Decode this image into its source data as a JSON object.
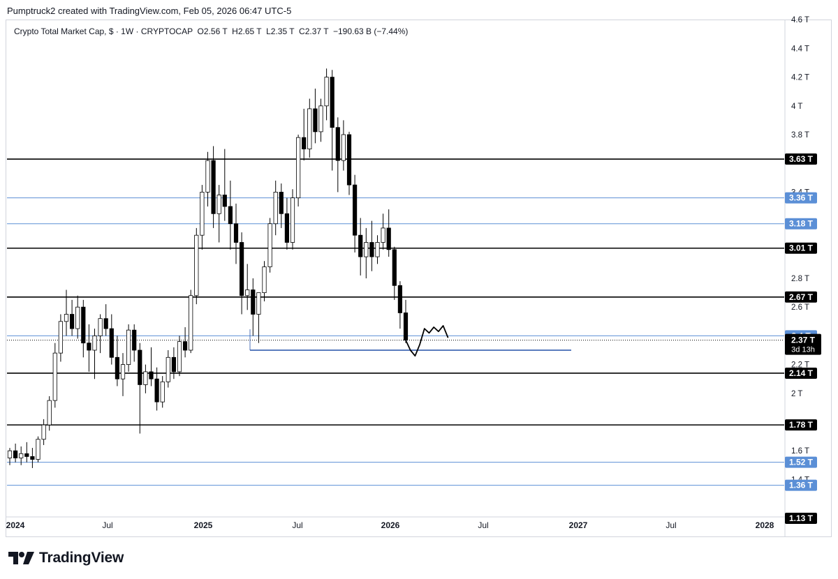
{
  "header": {
    "credit": "Pumptruck2 created with TradingView.com, Feb 05, 2026 06:47 UTC-5"
  },
  "legend": {
    "symbol": "Crypto Total Market Cap, $ · 1W · CRYPTOCAP",
    "o_key": "O",
    "o_val": "2.56 T",
    "h_key": "H",
    "h_val": "2.65 T",
    "l_key": "L",
    "l_val": "2.35 T",
    "c_key": "C",
    "c_val": "2.37 T",
    "change": "−190.63 B (−7.44%)"
  },
  "brand": {
    "name": "TradingView"
  },
  "colors": {
    "black_line": "#000000",
    "blue_line": "#5b8fd6",
    "support_line": "#2450a8",
    "candle_up_fill": "#ffffff",
    "candle_down_fill": "#000000",
    "badge_black": "#000000",
    "badge_blue": "#5b8fd6"
  },
  "chart_data": {
    "type": "candlestick",
    "title": "Crypto Total Market Cap, $ · 1W · CRYPTOCAP",
    "timeframe": "1W",
    "unit": "T",
    "y_ticks": [
      "4.6 T",
      "4.4 T",
      "4.2 T",
      "4 T",
      "3.8 T",
      "3.4 T",
      "2.8 T",
      "2.6 T",
      "2.2 T",
      "2 T",
      "1.6 T",
      "1.4 T"
    ],
    "y_tick_values": [
      4.6,
      4.4,
      4.2,
      4.0,
      3.8,
      3.4,
      2.8,
      2.6,
      2.2,
      2.0,
      1.6,
      1.4
    ],
    "x_labels": [
      {
        "label": "2024",
        "bold": true
      },
      {
        "label": "Jul",
        "bold": false
      },
      {
        "label": "2025",
        "bold": true
      },
      {
        "label": "Jul",
        "bold": false
      },
      {
        "label": "2026",
        "bold": true
      },
      {
        "label": "Jul",
        "bold": false
      },
      {
        "label": "2027",
        "bold": true
      },
      {
        "label": "Jul",
        "bold": false
      },
      {
        "label": "2028",
        "bold": true
      }
    ],
    "horizontal_levels": [
      {
        "value": 3.63,
        "label": "3.63 T",
        "style": "black"
      },
      {
        "value": 3.36,
        "label": "3.36 T",
        "style": "blue"
      },
      {
        "value": 3.18,
        "label": "3.18 T",
        "style": "blue"
      },
      {
        "value": 3.01,
        "label": "3.01 T",
        "style": "black"
      },
      {
        "value": 2.67,
        "label": "2.67 T",
        "style": "black"
      },
      {
        "value": 2.4,
        "label": "2.4 T",
        "style": "blue"
      },
      {
        "value": 2.14,
        "label": "2.14 T",
        "style": "black"
      },
      {
        "value": 1.78,
        "label": "1.78 T",
        "style": "black"
      },
      {
        "value": 1.52,
        "label": "1.52 T",
        "style": "blue"
      },
      {
        "value": 1.36,
        "label": "1.36 T",
        "style": "blue"
      },
      {
        "value": 1.13,
        "label": "1.13 T",
        "style": "black-badge-only"
      }
    ],
    "last_price": {
      "value": 2.37,
      "label": "2.37 T",
      "countdown": "3d 13h"
    },
    "support_segment": {
      "value": 2.3
    },
    "series": [
      {
        "candles": [
          [
            1.55,
            1.62,
            1.5,
            1.6
          ],
          [
            1.6,
            1.65,
            1.52,
            1.55
          ],
          [
            1.55,
            1.63,
            1.5,
            1.58
          ],
          [
            1.58,
            1.66,
            1.52,
            1.56
          ],
          [
            1.56,
            1.62,
            1.48,
            1.54
          ],
          [
            1.54,
            1.7,
            1.52,
            1.68
          ],
          [
            1.68,
            1.82,
            1.64,
            1.78
          ],
          [
            1.78,
            1.98,
            1.74,
            1.95
          ],
          [
            1.95,
            2.35,
            1.9,
            2.28
          ],
          [
            2.28,
            2.55,
            2.22,
            2.5
          ],
          [
            2.5,
            2.72,
            2.4,
            2.55
          ],
          [
            2.55,
            2.65,
            2.4,
            2.45
          ],
          [
            2.45,
            2.68,
            2.38,
            2.6
          ],
          [
            2.6,
            2.65,
            2.25,
            2.35
          ],
          [
            2.35,
            2.48,
            2.15,
            2.3
          ],
          [
            2.3,
            2.45,
            2.1,
            2.4
          ],
          [
            2.4,
            2.55,
            2.28,
            2.52
          ],
          [
            2.52,
            2.62,
            2.4,
            2.45
          ],
          [
            2.45,
            2.55,
            2.2,
            2.25
          ],
          [
            2.25,
            2.4,
            2.05,
            2.1
          ],
          [
            2.1,
            2.28,
            1.98,
            2.2
          ],
          [
            2.2,
            2.48,
            2.15,
            2.44
          ],
          [
            2.44,
            2.48,
            2.22,
            2.3
          ],
          [
            2.3,
            2.35,
            1.72,
            2.06
          ],
          [
            2.06,
            2.2,
            2.0,
            2.15
          ],
          [
            2.15,
            2.32,
            2.05,
            2.1
          ],
          [
            2.1,
            2.18,
            1.88,
            1.94
          ],
          [
            1.94,
            2.12,
            1.9,
            2.08
          ],
          [
            2.08,
            2.3,
            2.04,
            2.25
          ],
          [
            2.25,
            2.32,
            2.1,
            2.15
          ],
          [
            2.15,
            2.4,
            2.12,
            2.36
          ],
          [
            2.36,
            2.46,
            2.25,
            2.3
          ],
          [
            2.3,
            2.72,
            2.28,
            2.68
          ],
          [
            2.68,
            3.15,
            2.62,
            3.1
          ],
          [
            3.1,
            3.45,
            3.0,
            3.4
          ],
          [
            3.4,
            3.68,
            3.3,
            3.62
          ],
          [
            3.62,
            3.72,
            3.15,
            3.25
          ],
          [
            3.25,
            3.45,
            3.05,
            3.38
          ],
          [
            3.38,
            3.7,
            3.2,
            3.3
          ],
          [
            3.3,
            3.48,
            3.0,
            3.18
          ],
          [
            3.18,
            3.32,
            2.9,
            3.05
          ],
          [
            3.05,
            3.12,
            2.55,
            2.68
          ],
          [
            2.68,
            2.9,
            2.58,
            2.72
          ],
          [
            2.72,
            2.8,
            2.4,
            2.55
          ],
          [
            2.55,
            2.68,
            2.35,
            2.7
          ],
          [
            2.7,
            2.92,
            2.64,
            2.88
          ],
          [
            2.88,
            3.22,
            2.84,
            3.18
          ],
          [
            3.18,
            3.48,
            3.1,
            3.4
          ],
          [
            3.4,
            3.46,
            3.15,
            3.25
          ],
          [
            3.25,
            3.36,
            3.0,
            3.05
          ],
          [
            3.05,
            3.42,
            3.0,
            3.36
          ],
          [
            3.36,
            3.8,
            3.3,
            3.78
          ],
          [
            3.78,
            3.98,
            3.62,
            3.7
          ],
          [
            3.7,
            4.05,
            3.64,
            3.98
          ],
          [
            3.98,
            4.12,
            3.74,
            3.82
          ],
          [
            3.82,
            4.05,
            3.75,
            4.0
          ],
          [
            4.0,
            4.26,
            3.9,
            4.2
          ],
          [
            4.2,
            4.25,
            3.55,
            3.85
          ],
          [
            3.85,
            3.92,
            3.4,
            3.62
          ],
          [
            3.62,
            3.9,
            3.55,
            3.8
          ],
          [
            3.8,
            3.82,
            3.38,
            3.45
          ],
          [
            3.45,
            3.52,
            2.98,
            3.1
          ],
          [
            3.1,
            3.22,
            2.82,
            2.95
          ],
          [
            2.95,
            3.15,
            2.8,
            3.05
          ],
          [
            3.05,
            3.2,
            2.85,
            2.95
          ],
          [
            2.95,
            3.1,
            2.9,
            3.05
          ],
          [
            3.05,
            3.25,
            3.0,
            3.15
          ],
          [
            3.15,
            3.28,
            2.95,
            3.0
          ],
          [
            3.0,
            3.02,
            2.65,
            2.75
          ],
          [
            2.75,
            2.78,
            2.45,
            2.56
          ],
          [
            2.56,
            2.65,
            2.35,
            2.37
          ]
        ]
      }
    ],
    "projection": {
      "description": "hand-drawn path",
      "values": [
        2.37,
        2.3,
        2.26,
        2.34,
        2.45,
        2.42,
        2.46,
        2.43,
        2.47,
        2.39
      ]
    }
  }
}
